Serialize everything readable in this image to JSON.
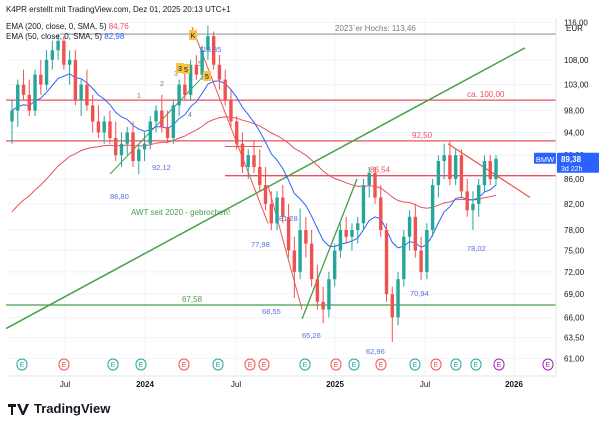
{
  "header": {
    "author_line": "K4PR erstellt mit TradingView.com, Dez 01, 2025 20:13 UTC+1"
  },
  "legend": {
    "ema200": {
      "label": "EMA (200, close, 0, SMA, 5)",
      "value": "84,76",
      "color": "#e8515f"
    },
    "ema50": {
      "label": "EMA (50, close, 0, SMA, 5)",
      "value": "82,98",
      "color": "#2962ff"
    }
  },
  "currency": "EUR",
  "footer": {
    "brand": "TradingView"
  },
  "chart_data": {
    "type": "candlestick",
    "symbol": "BMW",
    "last_price": "89,38",
    "time_remaining": "3d 22h",
    "y_axis": {
      "labels": [
        "116,00",
        "108,00",
        "103,00",
        "98,00",
        "94,00",
        "90,00",
        "86,00",
        "82,00",
        "78,00",
        "75,00",
        "72,00",
        "69,00",
        "66,00",
        "63,50",
        "61,00"
      ],
      "values": [
        116,
        108,
        103,
        98,
        94,
        90,
        86,
        82,
        78,
        75,
        72,
        69,
        66,
        63.5,
        61
      ],
      "scale": "log"
    },
    "x_axis": {
      "labels": [
        "Jul",
        "2024",
        "Jul",
        "2025",
        "Jul",
        "2026"
      ],
      "values": [
        "2023-07",
        "2024-01",
        "2024-07",
        "2025-01",
        "2025-07",
        "2026-01"
      ]
    },
    "horizontal_levels": [
      {
        "label": "2023´er Hochs: 113,46",
        "value": 113.46,
        "color": "#787b86"
      },
      {
        "label": "ca. 100,00",
        "value": 100.0,
        "color": "#e8515f"
      },
      {
        "label": "92,50",
        "value": 92.5,
        "color": "#e8515f"
      },
      {
        "label": "86,54",
        "value": 86.54,
        "color": "#e8515f"
      },
      {
        "label": "67,58",
        "value": 67.58,
        "color": "#43a047"
      }
    ],
    "annotations": [
      {
        "text": "AWT seit 2020 - gebrochen!",
        "color": "#43a047"
      },
      {
        "text": "115,35",
        "color": "#5b6ee1"
      },
      {
        "text": "92,12",
        "color": "#5b6ee1"
      },
      {
        "text": "86,80",
        "color": "#5b6ee1"
      },
      {
        "text": "81,28",
        "color": "#5b6ee1"
      },
      {
        "text": "77,98",
        "color": "#5b6ee1"
      },
      {
        "text": "68,55",
        "color": "#5b6ee1"
      },
      {
        "text": "65,26",
        "color": "#5b6ee1"
      },
      {
        "text": "62,96",
        "color": "#5b6ee1"
      },
      {
        "text": "70,94",
        "color": "#5b6ee1"
      },
      {
        "text": "78,02",
        "color": "#5b6ee1"
      }
    ],
    "wave_labels": [
      "1",
      "2",
      "3",
      "4",
      "5"
    ],
    "wave_markers": [
      "K",
      "3",
      "5",
      "5"
    ],
    "event_markers": [
      "E",
      "E",
      "E",
      "E",
      "E",
      "E",
      "E",
      "E",
      "E",
      "E",
      "E",
      "E",
      "E",
      "E",
      "E",
      "E",
      "E",
      "E"
    ],
    "colors": {
      "up": "#26a69a",
      "down": "#ef5350",
      "ema200": "#e8515f",
      "ema50": "#2962ff",
      "trend": "#43a047",
      "last": "#2962ff"
    },
    "candles": [
      {
        "t": 0,
        "o": 96,
        "h": 100,
        "l": 92,
        "c": 98
      },
      {
        "t": 1,
        "o": 98,
        "h": 104,
        "l": 95,
        "c": 103
      },
      {
        "t": 2,
        "o": 103,
        "h": 106,
        "l": 100,
        "c": 101
      },
      {
        "t": 3,
        "o": 101,
        "h": 104,
        "l": 97,
        "c": 98
      },
      {
        "t": 4,
        "o": 98,
        "h": 106,
        "l": 97,
        "c": 105
      },
      {
        "t": 5,
        "o": 105,
        "h": 108,
        "l": 101,
        "c": 103
      },
      {
        "t": 6,
        "o": 103,
        "h": 110,
        "l": 102,
        "c": 108
      },
      {
        "t": 7,
        "o": 108,
        "h": 112,
        "l": 106,
        "c": 110
      },
      {
        "t": 8,
        "o": 110,
        "h": 113.5,
        "l": 108,
        "c": 112
      },
      {
        "t": 9,
        "o": 112,
        "h": 113,
        "l": 106,
        "c": 107
      },
      {
        "t": 10,
        "o": 107,
        "h": 110,
        "l": 103,
        "c": 108
      },
      {
        "t": 11,
        "o": 108,
        "h": 110,
        "l": 99,
        "c": 100
      },
      {
        "t": 12,
        "o": 100,
        "h": 104,
        "l": 97,
        "c": 103
      },
      {
        "t": 13,
        "o": 103,
        "h": 106,
        "l": 98,
        "c": 99
      },
      {
        "t": 14,
        "o": 99,
        "h": 101,
        "l": 94,
        "c": 96
      },
      {
        "t": 15,
        "o": 96,
        "h": 99,
        "l": 93,
        "c": 94
      },
      {
        "t": 16,
        "o": 94,
        "h": 97,
        "l": 92,
        "c": 96
      },
      {
        "t": 17,
        "o": 96,
        "h": 98,
        "l": 92,
        "c": 93
      },
      {
        "t": 18,
        "o": 93,
        "h": 96,
        "l": 89,
        "c": 90
      },
      {
        "t": 19,
        "o": 90,
        "h": 94,
        "l": 88,
        "c": 92
      },
      {
        "t": 20,
        "o": 92,
        "h": 95,
        "l": 90,
        "c": 94
      },
      {
        "t": 21,
        "o": 94,
        "h": 96,
        "l": 88,
        "c": 89
      },
      {
        "t": 22,
        "o": 89,
        "h": 92,
        "l": 86.8,
        "c": 91
      },
      {
        "t": 23,
        "o": 91,
        "h": 94,
        "l": 89,
        "c": 92
      },
      {
        "t": 24,
        "o": 92,
        "h": 97,
        "l": 91,
        "c": 96
      },
      {
        "t": 25,
        "o": 96,
        "h": 99,
        "l": 94,
        "c": 98
      },
      {
        "t": 26,
        "o": 98,
        "h": 101,
        "l": 94,
        "c": 95
      },
      {
        "t": 27,
        "o": 95,
        "h": 98,
        "l": 92.1,
        "c": 93
      },
      {
        "t": 28,
        "o": 93,
        "h": 100,
        "l": 92,
        "c": 99
      },
      {
        "t": 29,
        "o": 99,
        "h": 104,
        "l": 97,
        "c": 103
      },
      {
        "t": 30,
        "o": 103,
        "h": 106,
        "l": 100,
        "c": 101
      },
      {
        "t": 31,
        "o": 101,
        "h": 108,
        "l": 100,
        "c": 107
      },
      {
        "t": 32,
        "o": 107,
        "h": 109,
        "l": 104,
        "c": 105
      },
      {
        "t": 33,
        "o": 105,
        "h": 111,
        "l": 104,
        "c": 110
      },
      {
        "t": 34,
        "o": 110,
        "h": 115.35,
        "l": 108,
        "c": 113
      },
      {
        "t": 35,
        "o": 113,
        "h": 114,
        "l": 106,
        "c": 107
      },
      {
        "t": 36,
        "o": 107,
        "h": 109,
        "l": 102,
        "c": 104
      },
      {
        "t": 37,
        "o": 104,
        "h": 106,
        "l": 99,
        "c": 100
      },
      {
        "t": 38,
        "o": 100,
        "h": 102,
        "l": 95,
        "c": 96
      },
      {
        "t": 39,
        "o": 96,
        "h": 97,
        "l": 91,
        "c": 92
      },
      {
        "t": 40,
        "o": 92,
        "h": 94,
        "l": 87,
        "c": 88
      },
      {
        "t": 41,
        "o": 88,
        "h": 91,
        "l": 86,
        "c": 90
      },
      {
        "t": 42,
        "o": 90,
        "h": 92.5,
        "l": 87,
        "c": 88
      },
      {
        "t": 43,
        "o": 88,
        "h": 91,
        "l": 84,
        "c": 85
      },
      {
        "t": 44,
        "o": 85,
        "h": 88,
        "l": 81,
        "c": 82
      },
      {
        "t": 45,
        "o": 82,
        "h": 84,
        "l": 77.98,
        "c": 79
      },
      {
        "t": 46,
        "o": 79,
        "h": 84,
        "l": 78,
        "c": 83
      },
      {
        "t": 47,
        "o": 83,
        "h": 85,
        "l": 79,
        "c": 80
      },
      {
        "t": 48,
        "o": 80,
        "h": 82,
        "l": 74,
        "c": 75
      },
      {
        "t": 49,
        "o": 75,
        "h": 77,
        "l": 68.5,
        "c": 72
      },
      {
        "t": 50,
        "o": 72,
        "h": 81.28,
        "l": 71,
        "c": 78
      },
      {
        "t": 51,
        "o": 78,
        "h": 80,
        "l": 74,
        "c": 76
      },
      {
        "t": 52,
        "o": 76,
        "h": 78,
        "l": 70,
        "c": 71
      },
      {
        "t": 53,
        "o": 71,
        "h": 73,
        "l": 67,
        "c": 68
      },
      {
        "t": 54,
        "o": 68,
        "h": 70,
        "l": 65.26,
        "c": 67
      },
      {
        "t": 55,
        "o": 67,
        "h": 72,
        "l": 66,
        "c": 71
      },
      {
        "t": 56,
        "o": 71,
        "h": 76,
        "l": 70,
        "c": 75
      },
      {
        "t": 57,
        "o": 75,
        "h": 79,
        "l": 74,
        "c": 78
      },
      {
        "t": 58,
        "o": 78,
        "h": 80,
        "l": 76,
        "c": 77
      },
      {
        "t": 59,
        "o": 77,
        "h": 79,
        "l": 75,
        "c": 78
      },
      {
        "t": 60,
        "o": 78,
        "h": 80,
        "l": 76,
        "c": 79
      },
      {
        "t": 61,
        "o": 79,
        "h": 86,
        "l": 78,
        "c": 85
      },
      {
        "t": 62,
        "o": 85,
        "h": 88,
        "l": 83,
        "c": 87
      },
      {
        "t": 63,
        "o": 87,
        "h": 88,
        "l": 82,
        "c": 83
      },
      {
        "t": 64,
        "o": 83,
        "h": 85,
        "l": 77,
        "c": 78
      },
      {
        "t": 65,
        "o": 78,
        "h": 79,
        "l": 68,
        "c": 69
      },
      {
        "t": 66,
        "o": 69,
        "h": 70,
        "l": 62.96,
        "c": 66
      },
      {
        "t": 67,
        "o": 66,
        "h": 72,
        "l": 65,
        "c": 71
      },
      {
        "t": 68,
        "o": 71,
        "h": 78,
        "l": 70,
        "c": 77
      },
      {
        "t": 69,
        "o": 77,
        "h": 81,
        "l": 75,
        "c": 80
      },
      {
        "t": 70,
        "o": 80,
        "h": 82,
        "l": 74,
        "c": 75
      },
      {
        "t": 71,
        "o": 75,
        "h": 77,
        "l": 70.94,
        "c": 72
      },
      {
        "t": 72,
        "o": 72,
        "h": 79,
        "l": 71,
        "c": 78
      },
      {
        "t": 73,
        "o": 78,
        "h": 86,
        "l": 77,
        "c": 85
      },
      {
        "t": 74,
        "o": 85,
        "h": 90,
        "l": 83,
        "c": 89
      },
      {
        "t": 75,
        "o": 89,
        "h": 92,
        "l": 86,
        "c": 90
      },
      {
        "t": 76,
        "o": 90,
        "h": 92.5,
        "l": 85,
        "c": 86
      },
      {
        "t": 77,
        "o": 86,
        "h": 91,
        "l": 85,
        "c": 90
      },
      {
        "t": 78,
        "o": 90,
        "h": 91,
        "l": 83,
        "c": 84
      },
      {
        "t": 79,
        "o": 84,
        "h": 86,
        "l": 80,
        "c": 81
      },
      {
        "t": 80,
        "o": 81,
        "h": 84,
        "l": 78.02,
        "c": 82
      },
      {
        "t": 81,
        "o": 82,
        "h": 86,
        "l": 80,
        "c": 85
      },
      {
        "t": 82,
        "o": 85,
        "h": 90,
        "l": 84,
        "c": 89
      },
      {
        "t": 83,
        "o": 89,
        "h": 90,
        "l": 85,
        "c": 86
      },
      {
        "t": 84,
        "o": 86,
        "h": 90,
        "l": 85,
        "c": 89.38
      }
    ]
  }
}
